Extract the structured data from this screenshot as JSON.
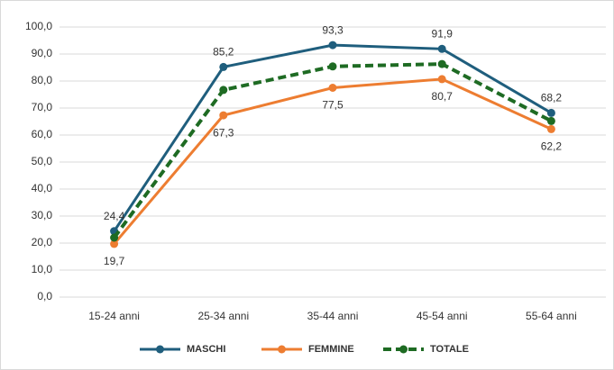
{
  "chart_data": {
    "type": "line",
    "categories": [
      "15-24 anni",
      "25-34 anni",
      "35-44 anni",
      "45-54 anni",
      "55-64 anni"
    ],
    "series": [
      {
        "name": "MASCHI",
        "color": "#1f5e7d",
        "values": [
          24.4,
          85.2,
          93.3,
          91.9,
          68.2
        ],
        "value_labels": [
          "24,4",
          "85,2",
          "93,3",
          "91,9",
          "68,2"
        ]
      },
      {
        "name": "FEMMINE",
        "color": "#ed7d31",
        "values": [
          19.7,
          67.3,
          77.5,
          80.7,
          62.2
        ],
        "value_labels": [
          "19,7",
          "67,3",
          "77,5",
          "80,7",
          "62,2"
        ]
      },
      {
        "name": "TOTALE",
        "color": "#1e6b23",
        "dashed": true,
        "values": [
          22.0,
          76.7,
          85.4,
          86.3,
          65.2
        ]
      }
    ],
    "ylim": [
      0,
      100
    ],
    "yticks": [
      {
        "value": 0,
        "label": "0,0"
      },
      {
        "value": 10,
        "label": "10,0"
      },
      {
        "value": 20,
        "label": "20,0"
      },
      {
        "value": 30,
        "label": "30,0"
      },
      {
        "value": 40,
        "label": "40,0"
      },
      {
        "value": 50,
        "label": "50,0"
      },
      {
        "value": 60,
        "label": "60,0"
      },
      {
        "value": 70,
        "label": "70,0"
      },
      {
        "value": 80,
        "label": "80,0"
      },
      {
        "value": 90,
        "label": "90,0"
      },
      {
        "value": 100,
        "label": "100,0"
      }
    ],
    "grid": true,
    "legend": "bottom"
  }
}
